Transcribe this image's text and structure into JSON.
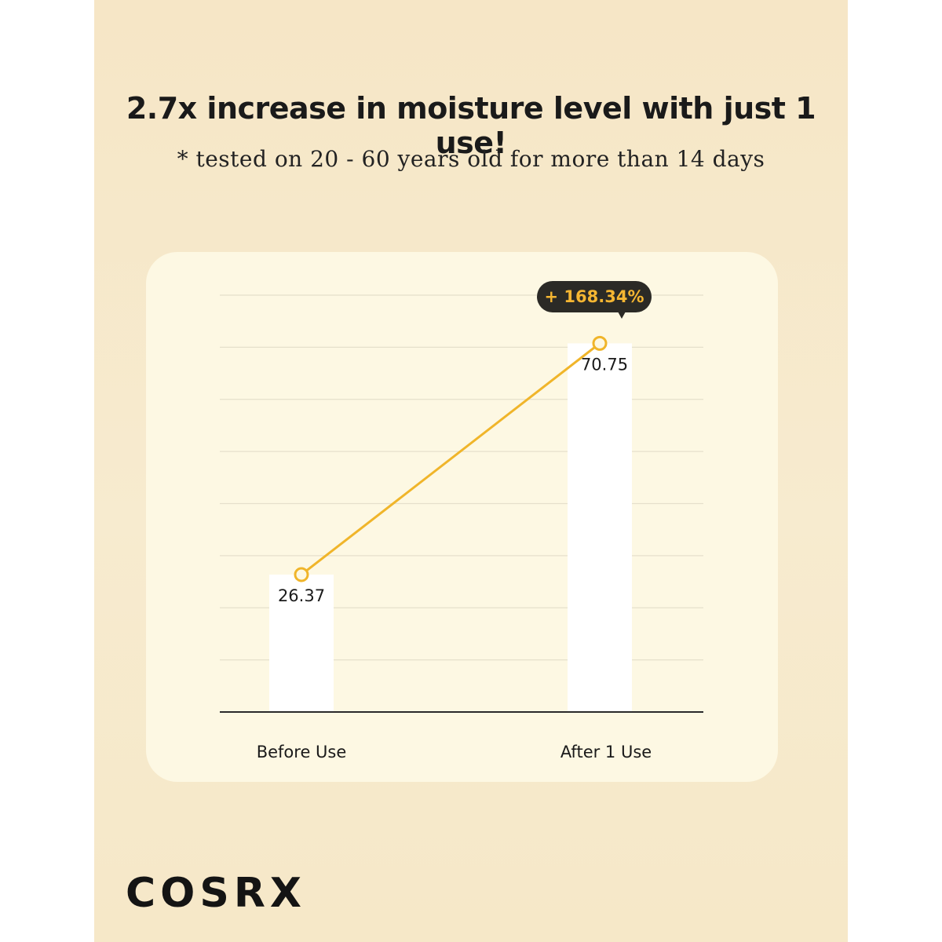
{
  "header": {
    "title": "2.7x increase in moisture level with just 1 use!",
    "subtitle": "* tested on 20 - 60 years old for more than 14 days"
  },
  "brand": "COSRX",
  "colors": {
    "background": "#f6e6c6",
    "card": "#fdf8e3",
    "bar": "#ffffff",
    "line": "#f0b52a",
    "callout_bg": "#2b2a26",
    "callout_text": "#f5b632",
    "text": "#1a1a1a"
  },
  "chart_data": {
    "type": "bar",
    "categories": [
      "Before Use",
      "After 1 Use"
    ],
    "values": [
      26.37,
      70.75
    ],
    "value_labels": [
      "26.37",
      "70.75"
    ],
    "overlay": "line",
    "callout": "+ 168.34%",
    "ylim": [
      0,
      80
    ],
    "grid": true,
    "gridline_count": 8,
    "title": "",
    "xlabel": "",
    "ylabel": ""
  }
}
